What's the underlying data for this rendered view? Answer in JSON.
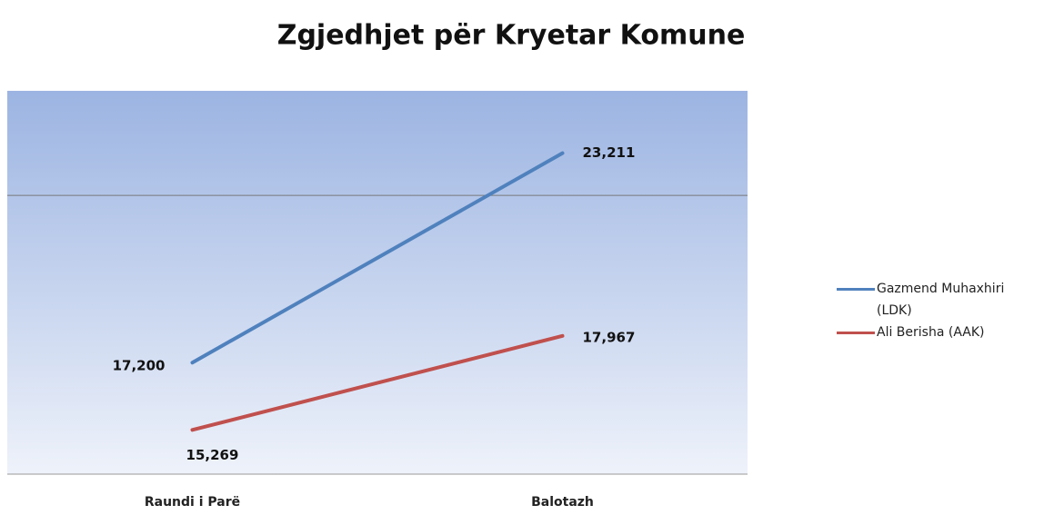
{
  "chart_data": {
    "type": "line",
    "title": "Zgjedhjet për Kryetar Komune",
    "categories": [
      "Raundi i Parë",
      "Balotazh"
    ],
    "series": [
      {
        "name": "Gazmend Muhaxhiri (LDK)",
        "color": "#4f81bd",
        "values": [
          17200,
          23211
        ],
        "value_labels": [
          "17,200",
          "23,211"
        ]
      },
      {
        "name": "Ali Berisha (AAK)",
        "color": "#c0504d",
        "values": [
          15269,
          17967
        ],
        "value_labels": [
          "15,269",
          "17,967"
        ]
      }
    ],
    "ylim": [
      14000,
      25000
    ],
    "yticks": [
      14000,
      22000
    ],
    "grid": true,
    "legend": "right"
  }
}
